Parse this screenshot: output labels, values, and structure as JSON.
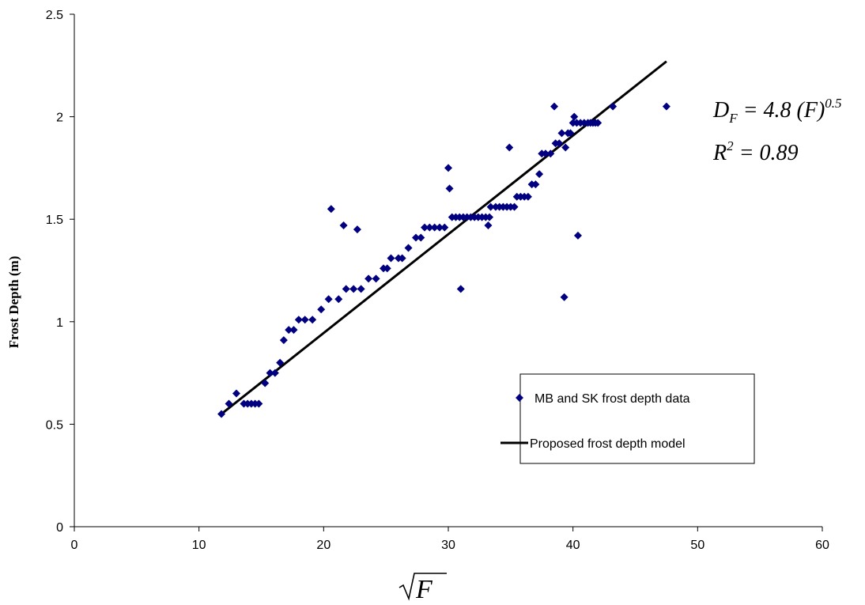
{
  "chart_data": {
    "type": "scatter",
    "title": "",
    "xlabel": "F",
    "ylabel": "Frost Depth (m)",
    "xlim": [
      0,
      60
    ],
    "ylim": [
      0,
      2.5
    ],
    "x_ticks": [
      "0",
      "10",
      "20",
      "30",
      "40",
      "50",
      "60"
    ],
    "y_ticks": [
      "0",
      "0.5",
      "1",
      "1.5",
      "2",
      "2.5"
    ],
    "grid": false,
    "legend_placement": "lower-right",
    "series": [
      {
        "name": "MB and SK frost depth data",
        "kind": "scatter",
        "marker": "diamond",
        "color": "#000080",
        "points": [
          [
            11.8,
            0.55
          ],
          [
            12.4,
            0.6
          ],
          [
            13.0,
            0.65
          ],
          [
            13.6,
            0.6
          ],
          [
            13.9,
            0.6
          ],
          [
            14.2,
            0.6
          ],
          [
            14.5,
            0.6
          ],
          [
            14.8,
            0.6
          ],
          [
            15.3,
            0.7
          ],
          [
            15.7,
            0.75
          ],
          [
            16.1,
            0.75
          ],
          [
            16.5,
            0.8
          ],
          [
            16.8,
            0.91
          ],
          [
            17.2,
            0.96
          ],
          [
            17.6,
            0.96
          ],
          [
            18.0,
            1.01
          ],
          [
            18.5,
            1.01
          ],
          [
            19.1,
            1.01
          ],
          [
            19.8,
            1.06
          ],
          [
            20.4,
            1.11
          ],
          [
            20.6,
            1.55
          ],
          [
            21.2,
            1.11
          ],
          [
            21.6,
            1.47
          ],
          [
            21.8,
            1.16
          ],
          [
            22.4,
            1.16
          ],
          [
            22.7,
            1.45
          ],
          [
            23.0,
            1.16
          ],
          [
            23.6,
            1.21
          ],
          [
            24.2,
            1.21
          ],
          [
            24.8,
            1.26
          ],
          [
            25.1,
            1.26
          ],
          [
            25.4,
            1.31
          ],
          [
            26.0,
            1.31
          ],
          [
            26.3,
            1.31
          ],
          [
            26.8,
            1.36
          ],
          [
            27.4,
            1.41
          ],
          [
            27.8,
            1.41
          ],
          [
            28.1,
            1.46
          ],
          [
            28.5,
            1.46
          ],
          [
            28.9,
            1.46
          ],
          [
            29.3,
            1.46
          ],
          [
            29.7,
            1.46
          ],
          [
            30.0,
            1.75
          ],
          [
            30.1,
            1.65
          ],
          [
            30.3,
            1.51
          ],
          [
            30.6,
            1.51
          ],
          [
            30.9,
            1.51
          ],
          [
            31.0,
            1.16
          ],
          [
            31.2,
            1.51
          ],
          [
            31.5,
            1.51
          ],
          [
            31.8,
            1.51
          ],
          [
            32.1,
            1.51
          ],
          [
            32.4,
            1.51
          ],
          [
            32.7,
            1.51
          ],
          [
            33.0,
            1.51
          ],
          [
            33.2,
            1.47
          ],
          [
            33.3,
            1.51
          ],
          [
            33.4,
            1.56
          ],
          [
            33.8,
            1.56
          ],
          [
            34.1,
            1.56
          ],
          [
            34.4,
            1.56
          ],
          [
            34.7,
            1.56
          ],
          [
            34.9,
            1.85
          ],
          [
            35.0,
            1.56
          ],
          [
            35.3,
            1.56
          ],
          [
            35.5,
            1.61
          ],
          [
            35.8,
            1.61
          ],
          [
            36.1,
            1.61
          ],
          [
            36.4,
            1.61
          ],
          [
            36.7,
            1.67
          ],
          [
            37.0,
            1.67
          ],
          [
            37.3,
            1.72
          ],
          [
            37.5,
            1.82
          ],
          [
            37.8,
            1.82
          ],
          [
            38.2,
            1.82
          ],
          [
            38.5,
            2.05
          ],
          [
            38.6,
            1.87
          ],
          [
            38.9,
            1.87
          ],
          [
            39.1,
            1.92
          ],
          [
            39.3,
            1.12
          ],
          [
            39.4,
            1.85
          ],
          [
            39.6,
            1.92
          ],
          [
            39.8,
            1.92
          ],
          [
            40.0,
            1.97
          ],
          [
            40.1,
            2.0
          ],
          [
            40.3,
            1.97
          ],
          [
            40.4,
            1.42
          ],
          [
            40.6,
            1.97
          ],
          [
            40.9,
            1.97
          ],
          [
            41.2,
            1.97
          ],
          [
            41.4,
            1.97
          ],
          [
            41.6,
            1.97
          ],
          [
            41.8,
            1.97
          ],
          [
            42.0,
            1.97
          ],
          [
            43.2,
            2.05
          ],
          [
            47.5,
            2.05
          ]
        ]
      },
      {
        "name": "Proposed frost depth model",
        "kind": "line",
        "color": "#000000",
        "x": [
          11.8,
          47.5
        ],
        "y": [
          0.55,
          2.27
        ]
      }
    ],
    "annotations": {
      "equation": {
        "lhs": "D",
        "sub": "F",
        "mid": " = 4.8 (F)",
        "sup": "0.5"
      },
      "r2": {
        "lhs": "R",
        "sup": "2",
        "rest": " = 0.89"
      }
    }
  }
}
